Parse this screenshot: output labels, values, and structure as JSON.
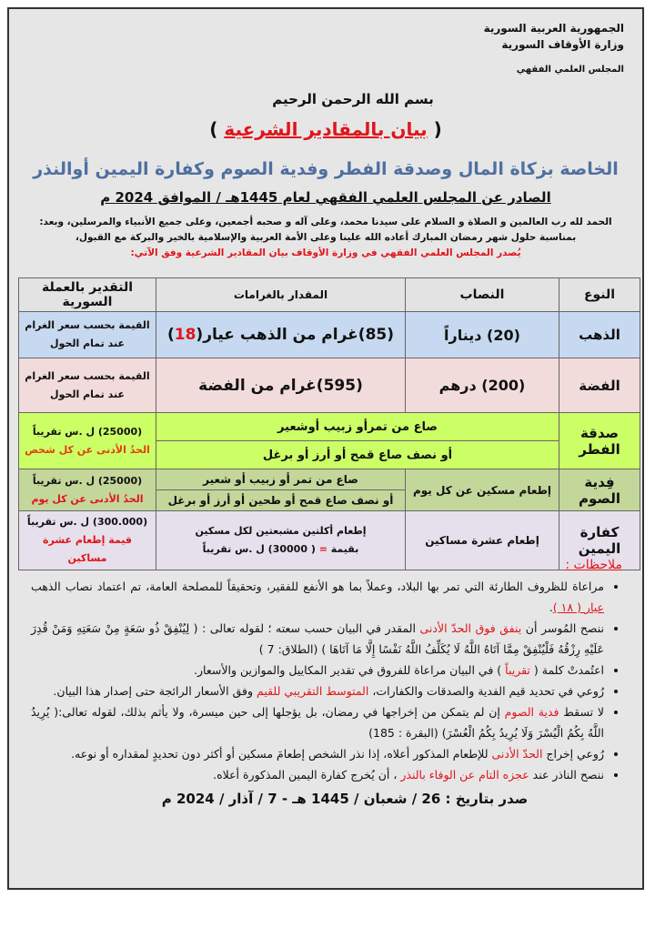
{
  "header": {
    "country": "الجمهورية العربية السورية",
    "ministry": "وزارة الأوقاف السورية",
    "council": "المجلس العلمي الفقهي"
  },
  "basmala": "بسم الله الرحمن الرحيم",
  "title": {
    "open": "(",
    "text": "بيان بالمقادير الشرعية",
    "close": ")"
  },
  "subtitle": "الخاصة بزكاة المال وصدقة الفطر وفدية الصوم وكفارة اليمين أوالنذر",
  "issued": "الصادر عن المجلس العلمي الفقهي لعام 1445هـ / الموافق 2024 م",
  "intro": {
    "line1": "الحمد لله رب العالمين و الصلاة و السلام على سيدنا محمد، وعلى آله و صحبه أجمعين، وعلى جميع الأنبياء والمرسلين، وبعد:",
    "line2": "بمناسبة حلول شهر رمضان المبارك أعاده الله علينا وعلى الأمة العربية والإسلامية بالخير والبركة مع القبول،",
    "line3": "يُصدر المجلس العلمي الفقهي في وزارة الأوقاف بيان المقادير الشرعية وفق الآتي:"
  },
  "table": {
    "headers": [
      "النوع",
      "النصاب",
      "المقدار بالغرامات",
      "التقدير بالعملة السورية"
    ],
    "gold": {
      "kind": "الذهب",
      "nisab": "(20) ديناراً",
      "amount": "(85)غرام من الذهب عيار(",
      "karat": "18",
      "amount_close": ")",
      "value1": "القيمة بحسب سعر الغرام",
      "value2": "عند تمام الحول"
    },
    "silver": {
      "kind": "الفضة",
      "nisab": "(200) درهم",
      "amount": "(595)غرام من الفضة",
      "value1": "القيمة بحسب سعر الغرام",
      "value2": "عند تمام الحول"
    },
    "sadaqa": {
      "kind": "صدقة الفطر",
      "amount1": "صاع من تمرأو زبيب أوشعير",
      "amount2": "أو نصف صاع قمح أو أرز أو برغل",
      "value1": "(25000) ل .س تقريباً",
      "value2": "الحدُ الأدنى عن كل شخص"
    },
    "fidya": {
      "kind": "فِدية الصوم",
      "nisab": "إطعام مسكين عن كل يوم",
      "amount1": "صاع من تمر أو زبيب أو شعير",
      "amount2": "أو نصف صاع قمح أو طحين أو أرز أو برغل",
      "value1": "(25000) ل .س تقريباً",
      "value2": "الحدُ الأدنى عن كل يوم"
    },
    "kaffara": {
      "kind": "كفارة اليمين",
      "nisab": "إطعام عشرة مساكين",
      "amount1": "إطعام أكلتين مشبعتين لكل مسكين",
      "amount2a": "بقيمة",
      "amount2eq": "=",
      "amount2b": "( 30000) ل .س تقريباً",
      "value1": "(300.000) ل .س تقريباً",
      "value2": "قيمة إطعام عشرة مساكين"
    }
  },
  "notes": {
    "heading": "ملاحظات :",
    "n1a": "مراعاة للظروف الطارئة التي تمر بها البلاد، وعملاً بما هو الأنفع للفقير، وتحقيقاً للمصلحة العامة، تم اعتماد نصاب الذهب ",
    "n1b": "عيار ( ١٨ )",
    "n1c": ".",
    "n2a": "ننصح المُوسر أن ",
    "n2b": "ينفق فوق الحدّ الأدنى",
    "n2c": " المقدر في البيان حسب سعته ؛ لقوله تعالى : ( لِيُنْفِقْ ذُو سَعَةٍ مِنْ سَعَتِهِ وَمَنْ قُدِرَ عَلَيْهِ رِزْقُهُ فَلْيُنْفِقْ مِمَّا آتَاهُ اللَّهُ لَا يُكَلِّفُ اللَّهُ نَفْسًا إِلَّا مَا آتَاهَا ) (الطلاق: 7 )",
    "n3a": "اعتُمدتْ كلمة ( ",
    "n3b": "تقريباً",
    "n3c": " ) في البيان مراعاة للفروق في تقدير المكاييل والموازين والأسعار.",
    "n4a": "رُوعي في تحديد قيم الفدية والصدقات والكفارات، ",
    "n4b": "المتوسط التقريبي للقيم",
    "n4c": " وفق الأسعار الرائجة حتى إصدار هذا البيان.",
    "n5a": "لا تسقط ",
    "n5b": "فدية الصوم",
    "n5c": " إن لم يتمكن من إخراجها في رمضان، بل يؤجلها إلى حين ميسرة، ولا يأثم بذلك، لقوله تعالى:( يُرِيدُ اللَّهُ بِكُمُ الْيُسْرَ وَلَا يُرِيدُ بِكُمُ الْعُسْرَ) (البقرة : 185)",
    "n6a": "رُوعي إخراج ",
    "n6b": "الحدّ الأدنى",
    "n6c": " للإطعام المذكور أعلاه، إذا نذر الشخص إطعامَ مسكين أو أكثر دون تحديدٍ لمقداره أو نوعه.",
    "n7a": "ننصح الناذر عند ",
    "n7b": "عجزه التام عن الوفاء بالنذر",
    "n7c": " ، أن يُخرج كفارة اليمين المذكورة أعلاه."
  },
  "date": "صدر بتاريخ :  26 / شعبان / 1445 هـ -  7 / آذار /  2024 م",
  "colors": {
    "red": "#e0141b",
    "blue_title": "#4f6fa0",
    "gold_row": "#c6d9f0",
    "silver_row": "#f2dcdb",
    "sadaqa_row": "#ccff66",
    "fidya_row": "#c4d79b",
    "kaffara_row": "#e6e0ec"
  }
}
